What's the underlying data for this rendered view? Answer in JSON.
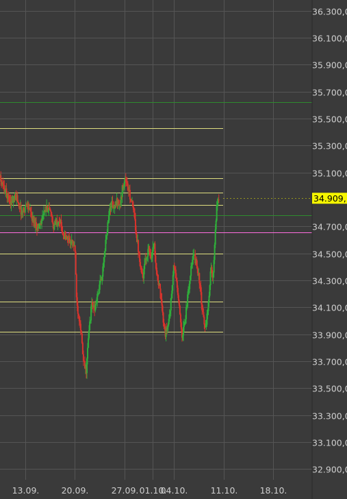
{
  "chart_data": {
    "type": "candlestick",
    "ylim": [
      32820,
      36380
    ],
    "x_range_days": [
      0,
      40
    ],
    "grid": true,
    "y_ticks": [
      "36.300,0",
      "36.100,0",
      "35.900,0",
      "35.700,0",
      "35.500,0",
      "35.300,0",
      "35.100,0",
      "34.700,0",
      "34.500,0",
      "34.300,0",
      "34.100,0",
      "33.900,0",
      "33.700,0",
      "33.500,0",
      "33.300,0",
      "33.100,0",
      "32.900,0"
    ],
    "y_tick_values": [
      36300,
      36100,
      35900,
      35700,
      35500,
      35300,
      35100,
      34700,
      34500,
      34300,
      34100,
      33900,
      33700,
      33500,
      33300,
      33100,
      32900
    ],
    "x_ticks": [
      {
        "label": "13.09.",
        "day": 5
      },
      {
        "label": "20.09.",
        "day": 12
      },
      {
        "label": "27.09.",
        "day": 19
      },
      {
        "label": "01.10.",
        "day": 23
      },
      {
        "label": "04.10.",
        "day": 26
      },
      {
        "label": "11.10.",
        "day": 33
      },
      {
        "label": "18.10.",
        "day": 40
      }
    ],
    "current_price": {
      "label": "34.909,",
      "value": 34909
    },
    "horizontal_levels": [
      {
        "value": 35620,
        "color": "#2e8b2e",
        "full_width": true
      },
      {
        "value": 35430,
        "color": "#e0df80"
      },
      {
        "value": 35060,
        "color": "#e0df80"
      },
      {
        "value": 34950,
        "color": "#e0df80"
      },
      {
        "value": 34860,
        "color": "#e0df80"
      },
      {
        "value": 34785,
        "color": "#2e8b2e",
        "full_width": true
      },
      {
        "value": 34655,
        "color": "#ff6ee0",
        "full_width": true
      },
      {
        "value": 34500,
        "color": "#e0df80"
      },
      {
        "value": 34140,
        "color": "#e0df80"
      },
      {
        "value": 33920,
        "color": "#e0df80"
      }
    ],
    "price_path": [
      [
        0.0,
        35000
      ],
      [
        0.8,
        35110
      ],
      [
        1.5,
        35050
      ],
      [
        2.2,
        34960
      ],
      [
        3.0,
        34880
      ],
      [
        3.8,
        34920
      ],
      [
        4.5,
        34800
      ],
      [
        5.3,
        34870
      ],
      [
        6.0,
        34760
      ],
      [
        6.8,
        34690
      ],
      [
        7.5,
        34780
      ],
      [
        8.3,
        34850
      ],
      [
        9.0,
        34700
      ],
      [
        9.8,
        34760
      ],
      [
        10.5,
        34620
      ],
      [
        11.2,
        34600
      ],
      [
        12.0,
        34560
      ],
      [
        12.3,
        34120
      ],
      [
        12.8,
        33980
      ],
      [
        13.2,
        33700
      ],
      [
        13.6,
        33620
      ],
      [
        14.0,
        33920
      ],
      [
        14.4,
        34130
      ],
      [
        14.8,
        34080
      ],
      [
        15.2,
        34180
      ],
      [
        15.6,
        34280
      ],
      [
        16.0,
        34380
      ],
      [
        16.4,
        34600
      ],
      [
        16.8,
        34790
      ],
      [
        17.2,
        34880
      ],
      [
        17.6,
        34820
      ],
      [
        18.0,
        34900
      ],
      [
        18.4,
        34850
      ],
      [
        18.8,
        35010
      ],
      [
        19.2,
        35050
      ],
      [
        19.6,
        34960
      ],
      [
        20.0,
        34890
      ],
      [
        20.4,
        34780
      ],
      [
        20.8,
        34600
      ],
      [
        21.2,
        34450
      ],
      [
        21.6,
        34320
      ],
      [
        22.0,
        34450
      ],
      [
        22.4,
        34540
      ],
      [
        22.8,
        34480
      ],
      [
        23.2,
        34570
      ],
      [
        23.6,
        34350
      ],
      [
        24.0,
        34220
      ],
      [
        24.4,
        34050
      ],
      [
        24.8,
        33900
      ],
      [
        25.2,
        33980
      ],
      [
        25.6,
        34150
      ],
      [
        26.0,
        34420
      ],
      [
        26.4,
        34280
      ],
      [
        26.8,
        34060
      ],
      [
        27.2,
        33880
      ],
      [
        27.6,
        34020
      ],
      [
        28.0,
        34200
      ],
      [
        28.4,
        34380
      ],
      [
        28.8,
        34490
      ],
      [
        29.2,
        34420
      ],
      [
        29.6,
        34300
      ],
      [
        30.0,
        34060
      ],
      [
        30.4,
        33950
      ],
      [
        30.8,
        34060
      ],
      [
        31.2,
        34410
      ],
      [
        31.5,
        34280
      ],
      [
        31.8,
        34610
      ],
      [
        32.1,
        34880
      ],
      [
        32.4,
        34909
      ]
    ]
  }
}
